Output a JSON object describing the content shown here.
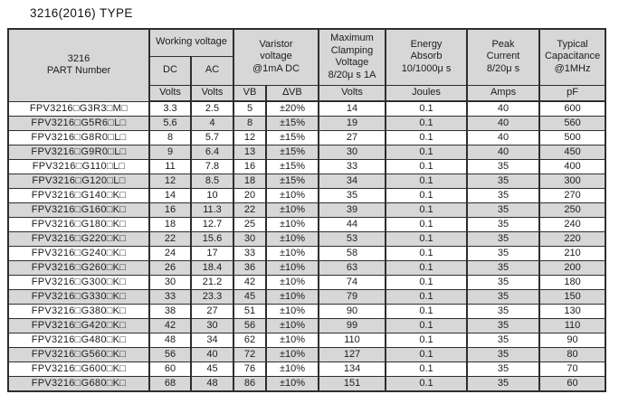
{
  "page": {
    "title": "3216(2016) TYPE"
  },
  "colors": {
    "page_bg": "#ffffff",
    "header_bg": "#d7d7d7",
    "row_alt_bg": "#d7d7d7",
    "row_bg": "#ffffff",
    "border": "#2e2e2e",
    "text": "#1c1c1c"
  },
  "table": {
    "header": {
      "part_number": "3216\nPART Number",
      "working_voltage": "Working voltage",
      "dc": "DC",
      "ac": "AC",
      "varistor_voltage": "Varistor\nvoltage\n@1mA DC",
      "max_clamping": "Maximum\nClamping\nVoltage\n8/20μ s 1A",
      "energy_absorb": "Energy\nAbsorb\n10/1000μ s",
      "peak_current": "Peak\nCurrent\n8/20μ s",
      "typical_capacitance": "Typical\nCapacitance\n@1MHz",
      "units": {
        "dc": "Volts",
        "ac": "Volts",
        "vb": "VB",
        "delta_vb": "∆VB",
        "clamping": "Volts",
        "energy": "Joules",
        "current": "Amps",
        "capacitance": "pF"
      }
    },
    "columns": [
      "part_number",
      "dc_volts",
      "ac_volts",
      "vb",
      "delta_vb",
      "clamping_volts",
      "energy_joules",
      "peak_current_amps",
      "capacitance_pf"
    ],
    "rows": [
      [
        "FPV3216□G3R3□M□",
        "3.3",
        "2.5",
        "5",
        "±20%",
        "14",
        "0.1",
        "40",
        "600"
      ],
      [
        "FPV3216□G5R6□L□",
        "5.6",
        "4",
        "8",
        "±15%",
        "19",
        "0.1",
        "40",
        "560"
      ],
      [
        "FPV3216□G8R0□L□",
        "8",
        "5.7",
        "12",
        "±15%",
        "27",
        "0.1",
        "40",
        "500"
      ],
      [
        "FPV3216□G9R0□L□",
        "9",
        "6.4",
        "13",
        "±15%",
        "30",
        "0.1",
        "40",
        "450"
      ],
      [
        "FPV3216□G110□L□",
        "11",
        "7.8",
        "16",
        "±15%",
        "33",
        "0.1",
        "35",
        "400"
      ],
      [
        "FPV3216□G120□L□",
        "12",
        "8.5",
        "18",
        "±15%",
        "34",
        "0.1",
        "35",
        "300"
      ],
      [
        "FPV3216□G140□K□",
        "14",
        "10",
        "20",
        "±10%",
        "35",
        "0.1",
        "35",
        "270"
      ],
      [
        "FPV3216□G160□K□",
        "16",
        "11.3",
        "22",
        "±10%",
        "39",
        "0.1",
        "35",
        "250"
      ],
      [
        "FPV3216□G180□K□",
        "18",
        "12.7",
        "25",
        "±10%",
        "44",
        "0.1",
        "35",
        "240"
      ],
      [
        "FPV3216□G220□K□",
        "22",
        "15.6",
        "30",
        "±10%",
        "53",
        "0.1",
        "35",
        "220"
      ],
      [
        "FPV3216□G240□K□",
        "24",
        "17",
        "33",
        "±10%",
        "58",
        "0.1",
        "35",
        "210"
      ],
      [
        "FPV3216□G260□K□",
        "26",
        "18.4",
        "36",
        "±10%",
        "63",
        "0.1",
        "35",
        "200"
      ],
      [
        "FPV3216□G300□K□",
        "30",
        "21.2",
        "42",
        "±10%",
        "74",
        "0.1",
        "35",
        "180"
      ],
      [
        "FPV3216□G330□K□",
        "33",
        "23.3",
        "45",
        "±10%",
        "79",
        "0.1",
        "35",
        "150"
      ],
      [
        "FPV3216□G380□K□",
        "38",
        "27",
        "51",
        "±10%",
        "90",
        "0.1",
        "35",
        "130"
      ],
      [
        "FPV3216□G420□K□",
        "42",
        "30",
        "56",
        "±10%",
        "99",
        "0.1",
        "35",
        "110"
      ],
      [
        "FPV3216□G480□K□",
        "48",
        "34",
        "62",
        "±10%",
        "110",
        "0.1",
        "35",
        "90"
      ],
      [
        "FPV3216□G560□K□",
        "56",
        "40",
        "72",
        "±10%",
        "127",
        "0.1",
        "35",
        "80"
      ],
      [
        "FPV3216□G600□K□",
        "60",
        "45",
        "76",
        "±10%",
        "134",
        "0.1",
        "35",
        "70"
      ],
      [
        "FPV3216□G680□K□",
        "68",
        "48",
        "86",
        "±10%",
        "151",
        "0.1",
        "35",
        "60"
      ]
    ]
  }
}
